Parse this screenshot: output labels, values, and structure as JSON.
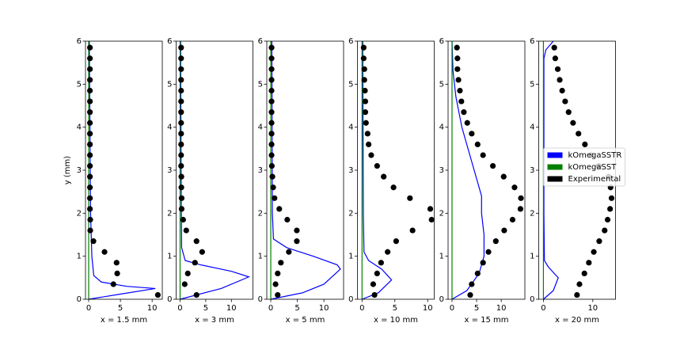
{
  "chart_data": [
    {
      "type": "line",
      "xlabel": "x = 1.5 mm",
      "ylabel": "y (mm)",
      "xlim": [
        -0.5,
        11.6
      ],
      "xticks": [
        0,
        5,
        10
      ],
      "ylim": [
        0,
        6
      ],
      "yticks": [
        0,
        1,
        2,
        3,
        4,
        5,
        6
      ],
      "series": [
        {
          "name": "kOmegaSSTR",
          "color": "#0000ff",
          "mode": "lines",
          "x": [
            0,
            5,
            10.5,
            6,
            2,
            0.8,
            0.5,
            0.3,
            0.2,
            0.1
          ],
          "y": [
            0,
            0.12,
            0.25,
            0.3,
            0.4,
            0.55,
            1,
            2,
            4,
            6
          ]
        },
        {
          "name": "kOmegaSST",
          "color": "#008000",
          "mode": "lines",
          "x": [
            0,
            0
          ],
          "y": [
            0,
            6
          ]
        },
        {
          "name": "Experimental",
          "color": "#000000",
          "mode": "markers",
          "x": [
            10.9,
            3.9,
            4.5,
            4.4,
            2.5,
            0.75,
            0.25,
            0.25,
            0.2,
            0.2,
            0.2,
            0.2,
            0.2,
            0.2,
            0.2,
            0.2,
            0.2,
            0.2,
            0.2,
            0.2,
            0.2,
            0.2,
            0.2,
            0.2
          ],
          "y": [
            0.1,
            0.35,
            0.6,
            0.85,
            1.1,
            1.35,
            1.6,
            1.85,
            2.1,
            2.35,
            2.6,
            2.85,
            3.1,
            3.35,
            3.6,
            3.85,
            4.1,
            4.35,
            4.6,
            4.85,
            5.1,
            5.35,
            5.6,
            5.85
          ]
        }
      ]
    },
    {
      "type": "line",
      "xlabel": "x = 3 mm",
      "xlim": [
        -0.77,
        14.2
      ],
      "xticks": [
        0,
        5,
        10
      ],
      "ylim": [
        0,
        6
      ],
      "yticks": [
        0,
        1,
        2,
        3,
        4,
        5,
        6
      ],
      "series": [
        {
          "name": "kOmegaSSTR",
          "color": "#0000ff",
          "mode": "lines",
          "x": [
            0,
            8,
            13.4,
            10,
            4,
            1,
            0.3,
            0.2,
            0.1
          ],
          "y": [
            0,
            0.25,
            0.52,
            0.65,
            0.8,
            0.9,
            1.2,
            3,
            6
          ]
        },
        {
          "name": "kOmegaSST",
          "color": "#008000",
          "mode": "lines",
          "x": [
            0,
            0
          ],
          "y": [
            0,
            6
          ]
        },
        {
          "name": "Experimental",
          "color": "#000000",
          "mode": "markers",
          "x": [
            3.2,
            0.9,
            1.5,
            2.9,
            4.3,
            3.2,
            1.2,
            0.6,
            0.3,
            0.3,
            0.25,
            0.25,
            0.2,
            0.2,
            0.2,
            0.2,
            0.2,
            0.2,
            0.2,
            0.2,
            0.2,
            0.2,
            0.2,
            0.2
          ],
          "y": [
            0.1,
            0.35,
            0.6,
            0.85,
            1.1,
            1.35,
            1.6,
            1.85,
            2.1,
            2.35,
            2.6,
            2.85,
            3.1,
            3.35,
            3.6,
            3.85,
            4.1,
            4.35,
            4.6,
            4.85,
            5.1,
            5.35,
            5.6,
            5.85
          ]
        }
      ]
    },
    {
      "type": "line",
      "xlabel": "x = 5 mm",
      "xlim": [
        -0.75,
        13.7
      ],
      "xticks": [
        0,
        5,
        10
      ],
      "ylim": [
        0,
        6
      ],
      "yticks": [
        0,
        1,
        2,
        3,
        4,
        5,
        6
      ],
      "series": [
        {
          "name": "kOmegaSSTR",
          "color": "#0000ff",
          "mode": "lines",
          "x": [
            0,
            6,
            10,
            13.1,
            12.5,
            8,
            3,
            0.5,
            0.3,
            0.2
          ],
          "y": [
            0,
            0.15,
            0.35,
            0.7,
            0.8,
            1,
            1.2,
            1.4,
            2,
            6
          ]
        },
        {
          "name": "kOmegaSST",
          "color": "#008000",
          "mode": "lines",
          "x": [
            0,
            0
          ],
          "y": [
            0,
            6
          ]
        },
        {
          "name": "Experimental",
          "color": "#000000",
          "mode": "markers",
          "x": [
            1.3,
            0.9,
            1.3,
            1.9,
            3.4,
            4.9,
            4.9,
            3.1,
            1.6,
            0.7,
            0.45,
            0.3,
            0.2,
            0.15,
            0.15,
            0.15,
            0.15,
            0.15,
            0.15,
            0.15,
            0.15,
            0.15,
            0.15,
            0.15
          ],
          "y": [
            0.1,
            0.35,
            0.6,
            0.85,
            1.1,
            1.35,
            1.6,
            1.85,
            2.1,
            2.35,
            2.6,
            2.85,
            3.1,
            3.35,
            3.6,
            3.85,
            4.1,
            4.35,
            4.6,
            4.85,
            5.1,
            5.35,
            5.6,
            5.85
          ]
        }
      ]
    },
    {
      "type": "line",
      "xlabel": "x = 10 mm",
      "xlim": [
        -0.7,
        11.0
      ],
      "xticks": [
        0,
        5,
        10
      ],
      "ylim": [
        0,
        6
      ],
      "yticks": [
        0,
        1,
        2,
        3,
        4,
        5,
        6
      ],
      "series": [
        {
          "name": "kOmegaSSTR",
          "color": "#0000ff",
          "mode": "lines",
          "x": [
            0,
            2.5,
            4.5,
            3,
            1,
            0.3,
            0.2,
            0.1
          ],
          "y": [
            0,
            0.15,
            0.45,
            0.7,
            0.9,
            1.1,
            2,
            6
          ]
        },
        {
          "name": "kOmegaSST",
          "color": "#008000",
          "mode": "lines",
          "x": [
            0,
            0
          ],
          "y": [
            0,
            6
          ]
        },
        {
          "name": "Experimental",
          "color": "#000000",
          "mode": "markers",
          "x": [
            1.9,
            1.7,
            2.3,
            2.9,
            3.9,
            5.2,
            7.7,
            10.6,
            10.4,
            7.3,
            4.8,
            3.3,
            2.3,
            1.4,
            1.0,
            0.85,
            0.6,
            0.5,
            0.5,
            0.45,
            0.35,
            0.35,
            0.25,
            0.25
          ],
          "y": [
            0.1,
            0.35,
            0.6,
            0.85,
            1.1,
            1.35,
            1.6,
            1.85,
            2.1,
            2.35,
            2.6,
            2.85,
            3.1,
            3.35,
            3.6,
            3.85,
            4.1,
            4.35,
            4.6,
            4.85,
            5.1,
            5.35,
            5.6,
            5.85
          ]
        }
      ]
    },
    {
      "type": "line",
      "xlabel": "x = 15 mm",
      "xlim": [
        -0.8,
        14.8
      ],
      "xticks": [
        0,
        5,
        10
      ],
      "ylim": [
        0,
        6
      ],
      "yticks": [
        0,
        1,
        2,
        3,
        4,
        5,
        6
      ],
      "series": [
        {
          "name": "kOmegaSSTR",
          "color": "#0000ff",
          "mode": "lines",
          "x": [
            0,
            3,
            5.5,
            6.5,
            6.5,
            6,
            6,
            4,
            2,
            0.8,
            0.2,
            0
          ],
          "y": [
            0,
            0.2,
            0.6,
            1,
            1.5,
            2,
            2.4,
            3.2,
            4,
            4.7,
            5.3,
            6
          ]
        },
        {
          "name": "kOmegaSST",
          "color": "#008000",
          "mode": "lines",
          "x": [
            0,
            0
          ],
          "y": [
            0,
            6
          ]
        },
        {
          "name": "Experimental",
          "color": "#000000",
          "mode": "markers",
          "x": [
            3.7,
            4.0,
            5.2,
            6.3,
            7.4,
            8.9,
            10.6,
            12.3,
            13.9,
            14.0,
            12.7,
            10.5,
            8.3,
            6.3,
            5.2,
            4.0,
            3.1,
            2.4,
            1.9,
            1.6,
            1.3,
            1.1,
            1.1,
            1.0
          ],
          "y": [
            0.1,
            0.35,
            0.6,
            0.85,
            1.1,
            1.35,
            1.6,
            1.85,
            2.1,
            2.35,
            2.6,
            2.85,
            3.1,
            3.35,
            3.6,
            3.85,
            4.1,
            4.35,
            4.6,
            4.85,
            5.1,
            5.35,
            5.6,
            5.85
          ]
        }
      ]
    },
    {
      "type": "line",
      "xlabel": "x = 20 mm",
      "xlim": [
        -0.95,
        14.6
      ],
      "xticks": [
        0,
        10
      ],
      "ylim": [
        0,
        6
      ],
      "yticks": [
        0,
        1,
        2,
        3,
        4,
        5,
        6
      ],
      "legend": "center right",
      "series": [
        {
          "name": "kOmegaSSTR",
          "color": "#0000ff",
          "mode": "lines",
          "x": [
            0,
            2,
            3,
            1,
            0.2,
            0.1,
            0.1,
            0.5,
            2
          ],
          "y": [
            0,
            0.2,
            0.5,
            0.75,
            0.9,
            2,
            5.6,
            5.8,
            6
          ]
        },
        {
          "name": "kOmegaSST",
          "color": "#008000",
          "mode": "lines",
          "x": [
            0,
            0
          ],
          "y": [
            0,
            6
          ]
        },
        {
          "name": "Experimental",
          "color": "#000000",
          "mode": "markers",
          "x": [
            6.8,
            7.3,
            8.3,
            9.2,
            10.2,
            11.3,
            12.4,
            13.0,
            13.5,
            13.8,
            13.6,
            13.2,
            11.2,
            9.7,
            8.4,
            7.1,
            6.0,
            5.1,
            4.4,
            3.8,
            3.3,
            2.9,
            2.4,
            2.2
          ],
          "y": [
            0.1,
            0.35,
            0.6,
            0.85,
            1.1,
            1.35,
            1.6,
            1.85,
            2.1,
            2.35,
            2.6,
            2.85,
            3.1,
            3.35,
            3.6,
            3.85,
            4.1,
            4.35,
            4.6,
            4.85,
            5.1,
            5.35,
            5.6,
            5.85
          ]
        }
      ]
    }
  ]
}
